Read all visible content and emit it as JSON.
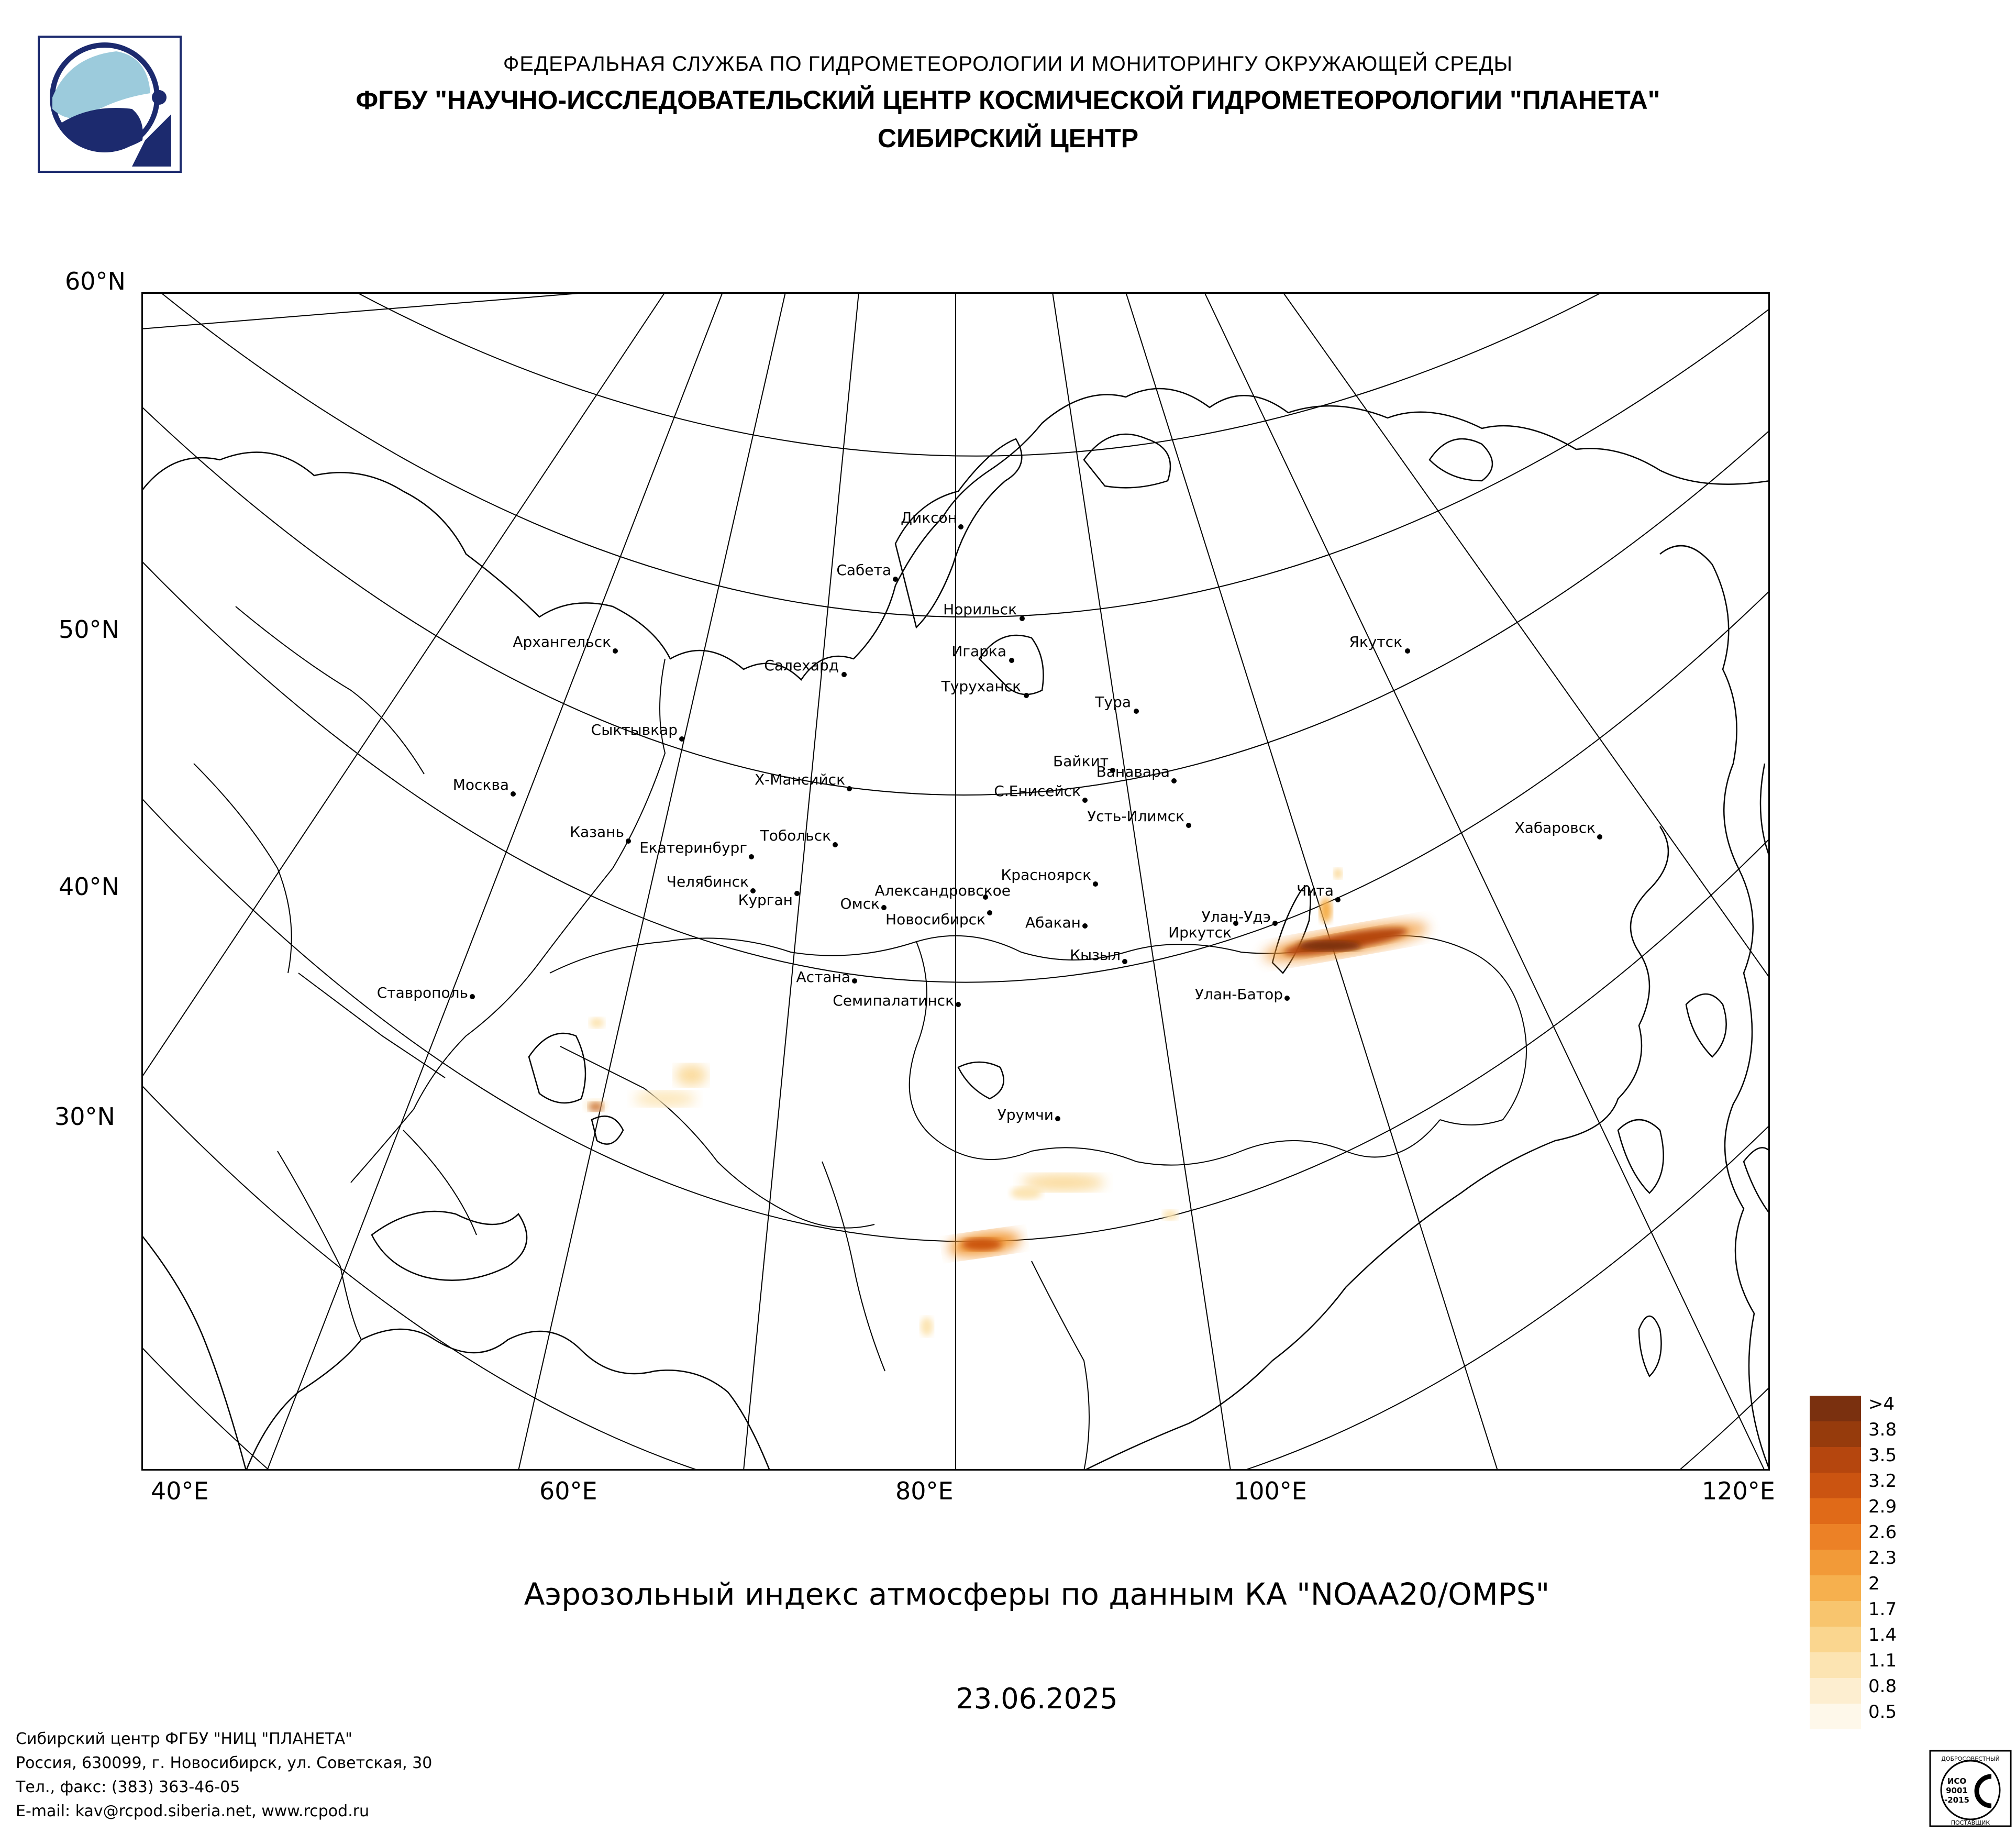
{
  "header": {
    "line1": "ФЕДЕРАЛЬНАЯ СЛУЖБА ПО ГИДРОМЕТЕОРОЛОГИИ И МОНИТОРИНГУ ОКРУЖАЮЩЕЙ СРЕДЫ",
    "line2": "ФГБУ \"НАУЧНО-ИССЛЕДОВАТЕЛЬСКИЙ ЦЕНТР КОСМИЧЕСКОЙ ГИДРОМЕТЕОРОЛОГИИ \"ПЛАНЕТА\"",
    "line3": "СИБИРСКИЙ ЦЕНТР"
  },
  "logo": {
    "icon": "planeta-logo-icon",
    "color_dark": "#1c2a6e",
    "color_light": "#9ccbdc"
  },
  "map": {
    "lat_labels": [
      "60°N",
      "50°N",
      "40°N",
      "30°N"
    ],
    "lon_labels": [
      "40°E",
      "60°E",
      "80°E",
      "100°E",
      "120°E"
    ],
    "cities": [
      "Диксон",
      "Сабета",
      "Норильск",
      "Игарка",
      "Туруханск",
      "Салехард",
      "Тура",
      "Якутск",
      "Архангельск",
      "Сыктывкар",
      "Байкит",
      "Ванавара",
      "С.Енисейск",
      "Усть-Илимск",
      "Х-Мансийск",
      "Москва",
      "Казань",
      "Екатеринбург",
      "Тобольск",
      "Хабаровск",
      "Челябинск",
      "Курган",
      "Красноярск",
      "Александровское",
      "Омск",
      "Новосибирск",
      "Абакан",
      "Улан-Удэ",
      "Чита",
      "Иркутск",
      "Кызыл",
      "Астана",
      "Ставрополь",
      "Семипалатинск",
      "Улан-Батор",
      "Урумчи"
    ]
  },
  "caption": "Аэрозольный индекс атмосферы по данным КА \"NOAA20/OMPS\"",
  "date": "23.06.2025",
  "legend": {
    "labels": [
      ">4",
      "3.8",
      "3.5",
      "3.2",
      "2.9",
      "2.6",
      "2.3",
      "2",
      "1.7",
      "1.4",
      "1.1",
      "0.8",
      "0.5"
    ],
    "colors": [
      "#7a300f",
      "#963b0c",
      "#b5460e",
      "#cb5411",
      "#e06a18",
      "#ec8126",
      "#f29a38",
      "#f6b04e",
      "#f8c56e",
      "#fad68f",
      "#fce4b2",
      "#fdeed0",
      "#fef8ea"
    ]
  },
  "footer": {
    "line1": "Сибирский центр ФГБУ \"НИЦ \"ПЛАНЕТА\"",
    "line2": "Россия, 630099, г. Новосибирск, ул. Советская, 30",
    "line3": "Тел., факс: (383) 363-46-05",
    "line4": "E-mail: kav@rcpod.siberia.net, www.rcpod.ru"
  },
  "certificate": {
    "icon": "iso-certificate-icon",
    "top_text": "ДОБРОСОВЕСТНЫЙ",
    "line1": "ИСО",
    "line2": "9001",
    "line3": "-2015",
    "bottom_text": "ПОСТАВЩИК"
  }
}
